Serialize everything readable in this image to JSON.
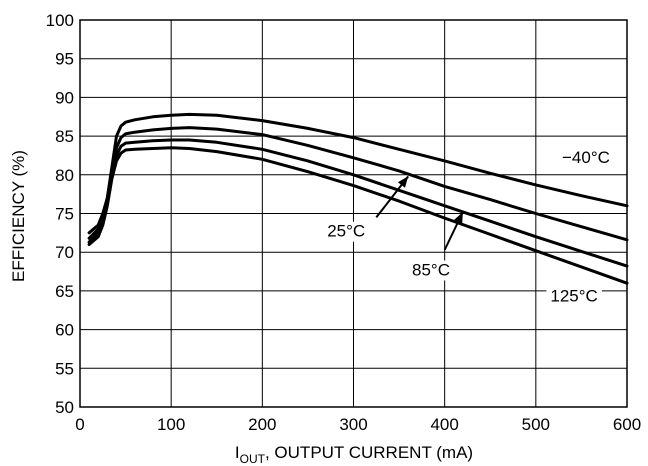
{
  "chart_data": {
    "type": "line",
    "xlabel_main": "I",
    "xlabel_sub": "OUT",
    "xlabel_rest": ", OUTPUT CURRENT (mA)",
    "ylabel": "EFFICIENCY (%)",
    "xlim": [
      0,
      600
    ],
    "ylim": [
      50,
      100
    ],
    "xticks": [
      0,
      100,
      200,
      300,
      400,
      500,
      600
    ],
    "yticks": [
      50,
      55,
      60,
      65,
      70,
      75,
      80,
      85,
      90,
      95,
      100
    ],
    "grid": true,
    "series": [
      {
        "name": "−40°C",
        "x": [
          10,
          20,
          25,
          30,
          35,
          40,
          45,
          50,
          60,
          80,
          100,
          120,
          150,
          200,
          250,
          300,
          350,
          400,
          450,
          500,
          550,
          600
        ],
        "y": [
          72.5,
          73.5,
          75,
          77,
          81,
          85,
          86.3,
          86.8,
          87.1,
          87.5,
          87.7,
          87.8,
          87.7,
          87,
          86,
          84.8,
          83.3,
          81.8,
          80.2,
          78.7,
          77.3,
          76
        ]
      },
      {
        "name": "25°C",
        "x": [
          10,
          20,
          25,
          30,
          35,
          40,
          45,
          50,
          60,
          80,
          100,
          120,
          150,
          200,
          250,
          300,
          350,
          400,
          450,
          500,
          550,
          600
        ],
        "y": [
          71.8,
          73,
          74.5,
          77,
          80.5,
          83.5,
          84.8,
          85.3,
          85.5,
          85.8,
          86,
          86.1,
          85.9,
          85.2,
          83.8,
          82.2,
          80.5,
          78.5,
          76.8,
          75,
          73.3,
          71.6
        ]
      },
      {
        "name": "85°C",
        "x": [
          10,
          20,
          25,
          30,
          35,
          40,
          45,
          50,
          60,
          80,
          100,
          120,
          150,
          200,
          250,
          300,
          350,
          400,
          450,
          500,
          550,
          600
        ],
        "y": [
          71.3,
          72.5,
          74,
          76.5,
          80,
          82.5,
          83.7,
          84.1,
          84.2,
          84.4,
          84.5,
          84.5,
          84.2,
          83.3,
          81.8,
          80,
          78,
          76,
          74,
          72,
          70.1,
          68.2
        ]
      },
      {
        "name": "125°C",
        "x": [
          10,
          20,
          25,
          30,
          35,
          40,
          45,
          50,
          60,
          80,
          100,
          120,
          150,
          200,
          250,
          300,
          350,
          400,
          450,
          500,
          550,
          600
        ],
        "y": [
          71,
          72,
          73.5,
          76,
          79.5,
          81.8,
          82.8,
          83.2,
          83.3,
          83.4,
          83.5,
          83.4,
          83,
          82,
          80.4,
          78.6,
          76.6,
          74.4,
          72.3,
          70.2,
          68.1,
          66
        ]
      }
    ]
  }
}
